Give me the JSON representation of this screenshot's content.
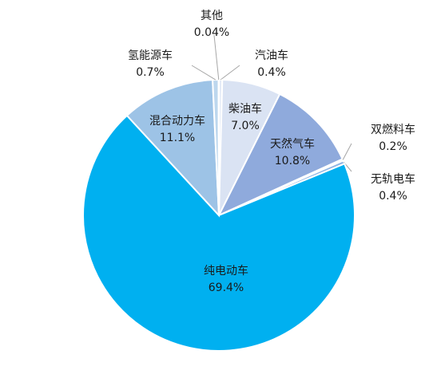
{
  "chart_data": {
    "type": "pie",
    "categories": [
      "汽油车",
      "柴油车",
      "天然气车",
      "双燃料车",
      "无轨电车",
      "纯电动车",
      "混合动力车",
      "氢能源车",
      "其他"
    ],
    "values": [
      0.4,
      7.0,
      10.8,
      0.2,
      0.4,
      69.4,
      11.1,
      0.7,
      0.04
    ],
    "value_labels": [
      "0.4%",
      "7.0%",
      "10.8%",
      "0.2%",
      "0.4%",
      "69.4%",
      "11.1%",
      "0.7%",
      "0.04%"
    ],
    "colors": [
      "#e4ebf7",
      "#dae3f3",
      "#8faadc",
      "#b4c7e7",
      "#8eb4e3",
      "#00b0f0",
      "#9dc3e6",
      "#bdd7ee",
      "#c9d9f0"
    ]
  }
}
